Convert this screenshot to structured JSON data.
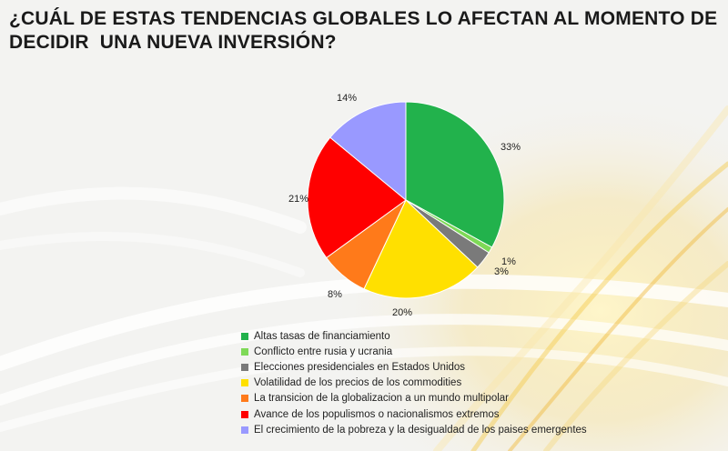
{
  "title": {
    "line1": "¿CUÁL DE ESTAS TENDENCIAS GLOBALES LO AFECTAN AL MOMENTO DE",
    "line2": "DECIDIR  UNA NUEVA INVERSIÓN?"
  },
  "chart_data": {
    "type": "pie",
    "title": "¿CUÁL DE ESTAS TENDENCIAS GLOBALES LO AFECTAN AL MOMENTO DE DECIDIR  UNA NUEVA INVERSIÓN?",
    "legend_position": "bottom",
    "slices": [
      {
        "label": "Altas tasas de financiamiento",
        "value": 33,
        "display": "33%",
        "color": "#22b24c"
      },
      {
        "label": "Conflicto entre rusia y ucrania",
        "value": 1,
        "display": "1%",
        "color": "#7ed957"
      },
      {
        "label": "Elecciones presidenciales en Estados Unidos",
        "value": 3,
        "display": "3%",
        "color": "#7a7a7a"
      },
      {
        "label": "Volatilidad de los precios de los commodities",
        "value": 20,
        "display": "20%",
        "color": "#ffe000"
      },
      {
        "label": "La transicion de la globalizacion a un mundo multipolar",
        "value": 8,
        "display": "8%",
        "color": "#ff7a1a"
      },
      {
        "label": "Avance de los populismos o nacionalismos extremos",
        "value": 21,
        "display": "21%",
        "color": "#ff0000"
      },
      {
        "label": "El crecimiento de la pobreza y la desigualdad de los paises emergentes",
        "value": 14,
        "display": "14%",
        "color": "#9999ff"
      }
    ]
  }
}
